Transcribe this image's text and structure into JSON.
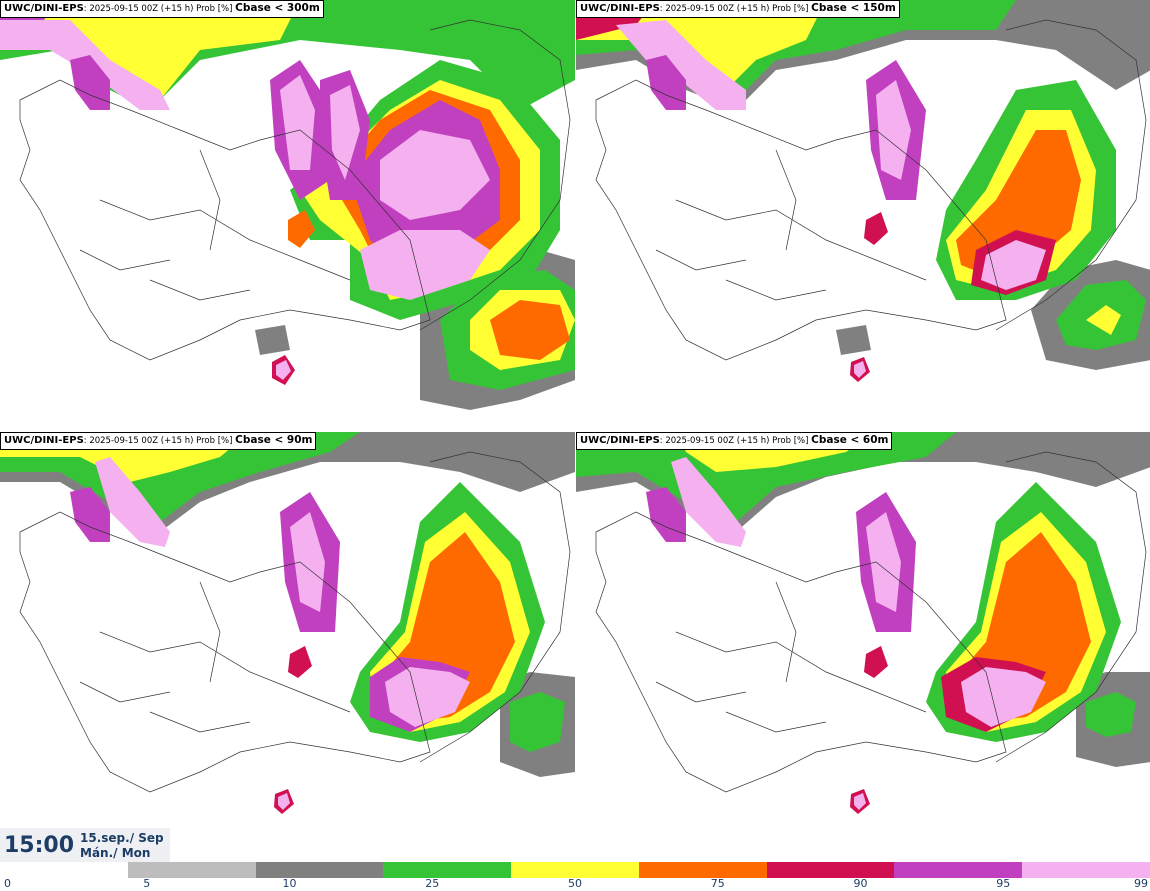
{
  "panels": [
    {
      "model": "UWC/DINI-EPS",
      "info": ": 2025-09-15 00Z (+15 h) Prob [%]",
      "threshold": "Cbase < 300m"
    },
    {
      "model": "UWC/DINI-EPS",
      "info": ": 2025-09-15 00Z (+15 h) Prob [%]",
      "threshold": "Cbase < 150m"
    },
    {
      "model": "UWC/DINI-EPS",
      "info": ": 2025-09-15 00Z (+15 h) Prob [%]",
      "threshold": "Cbase < 90m"
    },
    {
      "model": "UWC/DINI-EPS",
      "info": ": 2025-09-15 00Z (+15 h) Prob [%]",
      "threshold": "Cbase < 60m"
    }
  ],
  "valid_time": {
    "time": "15:00",
    "date_line1": "15.sep./ Sep",
    "date_line2": "Mán./ Mon"
  },
  "colorbar": {
    "ticks": [
      "0",
      "5",
      "10",
      "25",
      "50",
      "75",
      "90",
      "95",
      "99"
    ],
    "colors": [
      "#ffffff",
      "#bdbdbd",
      "#808080",
      "#35c435",
      "#ffff33",
      "#ff6a00",
      "#d01050",
      "#c040c0",
      "#f5b0f0"
    ]
  }
}
